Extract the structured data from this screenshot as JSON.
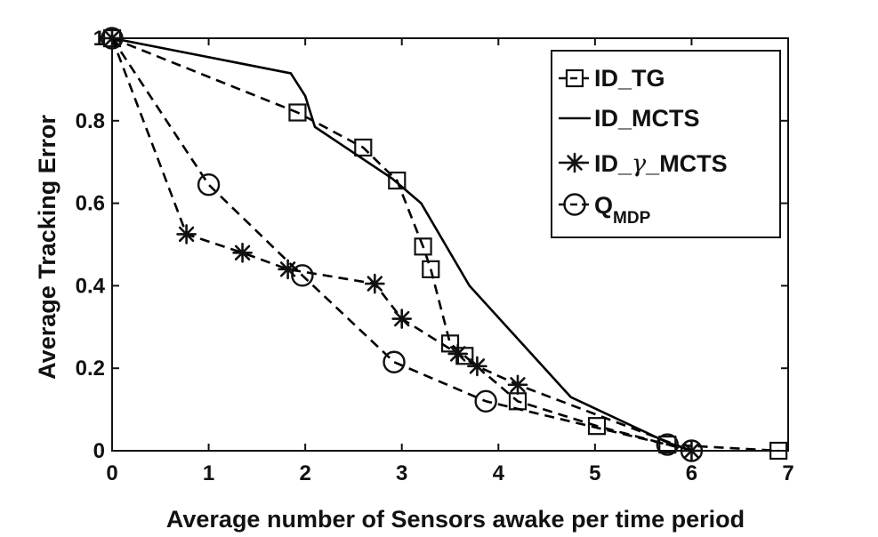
{
  "chart_data": {
    "type": "line",
    "title": "",
    "xlabel": "Average number of Sensors awake per time period",
    "ylabel": "Average Tracking Error",
    "xlim": [
      0,
      7
    ],
    "ylim": [
      0,
      1
    ],
    "x_ticks": [
      "0",
      "1",
      "2",
      "3",
      "4",
      "5",
      "6",
      "7"
    ],
    "y_ticks": [
      "0",
      "0.2",
      "0.4",
      "0.6",
      "0.8",
      "1"
    ],
    "grid": false,
    "legend_position": "top-right",
    "series": [
      {
        "name": "ID_TG",
        "line_style": "dashed",
        "marker": "square",
        "color": "#000000",
        "points": [
          [
            0,
            1.0
          ],
          [
            1.92,
            0.82
          ],
          [
            2.6,
            0.735
          ],
          [
            2.95,
            0.655
          ],
          [
            3.22,
            0.495
          ],
          [
            3.3,
            0.44
          ],
          [
            3.5,
            0.26
          ],
          [
            3.65,
            0.23
          ],
          [
            4.2,
            0.12
          ],
          [
            5.02,
            0.06
          ],
          [
            5.75,
            0.015
          ],
          [
            6.9,
            0.0
          ]
        ]
      },
      {
        "name": "ID_MCTS",
        "line_style": "solid",
        "marker": "none",
        "color": "#000000",
        "points": [
          [
            0,
            1.0
          ],
          [
            1.85,
            0.915
          ],
          [
            2.0,
            0.86
          ],
          [
            2.1,
            0.785
          ],
          [
            2.9,
            0.66
          ],
          [
            3.2,
            0.6
          ],
          [
            3.7,
            0.4
          ],
          [
            4.75,
            0.13
          ],
          [
            5.75,
            0.02
          ],
          [
            6.0,
            0.0
          ]
        ]
      },
      {
        "name": "ID_γ_MCTS",
        "line_style": "dashed",
        "marker": "asterisk",
        "color": "#000000",
        "points": [
          [
            0,
            1.0
          ],
          [
            0.77,
            0.525
          ],
          [
            1.35,
            0.48
          ],
          [
            1.82,
            0.44
          ],
          [
            2.72,
            0.405
          ],
          [
            3.0,
            0.32
          ],
          [
            3.58,
            0.235
          ],
          [
            3.78,
            0.205
          ],
          [
            4.2,
            0.16
          ],
          [
            6.0,
            0.0
          ]
        ]
      },
      {
        "name": "Q_MDP",
        "line_style": "dashed",
        "marker": "circle",
        "color": "#000000",
        "points": [
          [
            0,
            1.0
          ],
          [
            1.0,
            0.645
          ],
          [
            1.97,
            0.425
          ],
          [
            2.92,
            0.215
          ],
          [
            3.87,
            0.12
          ],
          [
            5.75,
            0.015
          ],
          [
            6.0,
            0.0
          ]
        ]
      }
    ],
    "legend": [
      {
        "label": "ID_TG",
        "marker": "square",
        "line_style": "dashed"
      },
      {
        "label": "ID_MCTS",
        "marker": "none",
        "line_style": "solid"
      },
      {
        "label_main": "ID_",
        "label_gamma": "γ",
        "label_rest": "_MCTS",
        "marker": "asterisk",
        "line_style": "dashed"
      },
      {
        "label_main": "Q",
        "label_sub": "MDP",
        "marker": "circle",
        "line_style": "dashed"
      }
    ]
  }
}
